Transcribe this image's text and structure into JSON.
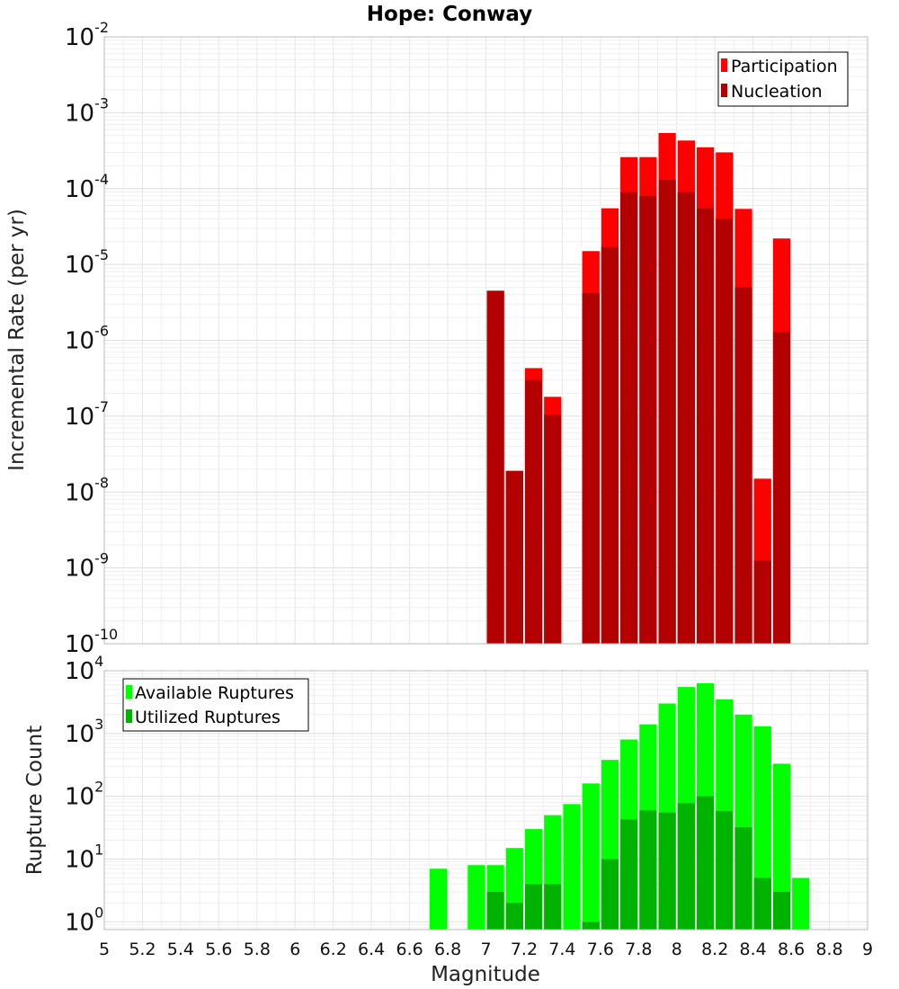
{
  "chart_data": [
    {
      "type": "bar",
      "title": "Hope: Conway",
      "xlabel": "",
      "ylabel": "Incremental Rate (per yr)",
      "xlim": [
        5,
        9
      ],
      "ylim": [
        1e-10,
        0.01
      ],
      "yscale": "log",
      "grid": true,
      "legend_placement": "top-right",
      "series": [
        {
          "name": "Participation",
          "color": "#ff0000",
          "points": [
            [
              7.05,
              4.5e-06
            ],
            [
              7.15,
              1.9e-08
            ],
            [
              7.25,
              4.3e-07
            ],
            [
              7.35,
              1.8e-07
            ],
            [
              7.55,
              1.5e-05
            ],
            [
              7.65,
              5.5e-05
            ],
            [
              7.75,
              0.00026
            ],
            [
              7.85,
              0.00026
            ],
            [
              7.95,
              0.00054
            ],
            [
              8.05,
              0.00043
            ],
            [
              8.15,
              0.00035
            ],
            [
              8.25,
              0.0003
            ],
            [
              8.35,
              5.4e-05
            ],
            [
              8.45,
              1.5e-08
            ],
            [
              8.55,
              2.2e-05
            ]
          ]
        },
        {
          "name": "Nucleation",
          "color": "#b30000",
          "points": [
            [
              7.05,
              4.5e-06
            ],
            [
              7.15,
              1.9e-08
            ],
            [
              7.25,
              3e-07
            ],
            [
              7.35,
              1.05e-07
            ],
            [
              7.55,
              4.2e-06
            ],
            [
              7.65,
              1.7e-05
            ],
            [
              7.75,
              9e-05
            ],
            [
              7.85,
              8e-05
            ],
            [
              7.95,
              0.00013
            ],
            [
              8.05,
              9e-05
            ],
            [
              8.15,
              5.5e-05
            ],
            [
              8.25,
              4e-05
            ],
            [
              8.35,
              5e-06
            ],
            [
              8.45,
              1.25e-09
            ],
            [
              8.55,
              1.3e-06
            ]
          ]
        }
      ],
      "yticks": [
        {
          "base": "10",
          "exp": "-2"
        },
        {
          "base": "10",
          "exp": "-3"
        },
        {
          "base": "10",
          "exp": "-4"
        },
        {
          "base": "10",
          "exp": "-5"
        },
        {
          "base": "10",
          "exp": "-6"
        },
        {
          "base": "10",
          "exp": "-7"
        },
        {
          "base": "10",
          "exp": "-8"
        },
        {
          "base": "10",
          "exp": "-9"
        },
        {
          "base": "10",
          "exp": "-10"
        }
      ]
    },
    {
      "type": "bar",
      "title": "",
      "xlabel": "Magnitude",
      "ylabel": "Rupture Count",
      "xlim": [
        5,
        9
      ],
      "ylim": [
        0.75,
        10000
      ],
      "yscale": "log",
      "grid": true,
      "legend_placement": "top-left",
      "series": [
        {
          "name": "Available Ruptures",
          "color": "#00ff00",
          "points": [
            [
              6.75,
              7
            ],
            [
              6.95,
              8
            ],
            [
              7.05,
              8
            ],
            [
              7.15,
              15
            ],
            [
              7.25,
              30
            ],
            [
              7.35,
              50
            ],
            [
              7.45,
              75
            ],
            [
              7.55,
              160
            ],
            [
              7.65,
              380
            ],
            [
              7.75,
              800
            ],
            [
              7.85,
              1400
            ],
            [
              7.95,
              3000
            ],
            [
              8.05,
              5500
            ],
            [
              8.15,
              6300
            ],
            [
              8.25,
              3500
            ],
            [
              8.35,
              2000
            ],
            [
              8.45,
              1300
            ],
            [
              8.55,
              330
            ],
            [
              8.65,
              5
            ]
          ]
        },
        {
          "name": "Utilized Ruptures",
          "color": "#00b300",
          "points": [
            [
              7.05,
              3
            ],
            [
              7.15,
              2
            ],
            [
              7.25,
              4
            ],
            [
              7.35,
              4
            ],
            [
              7.55,
              1
            ],
            [
              7.65,
              10
            ],
            [
              7.75,
              43
            ],
            [
              7.85,
              60
            ],
            [
              7.95,
              55
            ],
            [
              8.05,
              78
            ],
            [
              8.15,
              100
            ],
            [
              8.25,
              58
            ],
            [
              8.35,
              32
            ],
            [
              8.45,
              5
            ],
            [
              8.55,
              3
            ]
          ]
        }
      ],
      "yticks": [
        {
          "base": "10",
          "exp": "4"
        },
        {
          "base": "10",
          "exp": "3"
        },
        {
          "base": "10",
          "exp": "2"
        },
        {
          "base": "10",
          "exp": "1"
        },
        {
          "base": "10",
          "exp": "0"
        }
      ]
    }
  ],
  "x_ticks": [
    "5",
    "5.2",
    "5.4",
    "5.6",
    "5.8",
    "6",
    "6.2",
    "6.4",
    "6.6",
    "6.8",
    "7",
    "7.2",
    "7.4",
    "7.6",
    "7.8",
    "8",
    "8.2",
    "8.4",
    "8.6",
    "8.8",
    "9"
  ],
  "bar_width": 0.1
}
